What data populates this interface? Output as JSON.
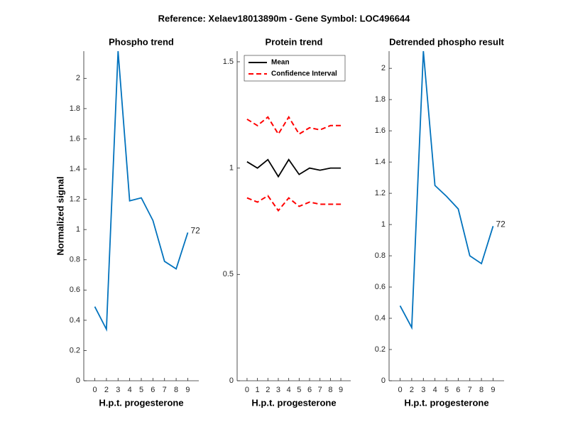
{
  "title": "Reference:  Xelaev18013890m - Gene Symbol:  LOC496644",
  "chart_data": [
    {
      "type": "line",
      "title": "Phospho trend",
      "xlabel": "H.p.t. progesterone",
      "ylabel": "Normalized signal",
      "categories": [
        "0",
        "2",
        "3",
        "4",
        "5",
        "6",
        "7",
        "8",
        "9"
      ],
      "series": [
        {
          "name": "Phospho",
          "color": "#0072bd",
          "values": [
            0.49,
            0.34,
            2.18,
            1.19,
            1.21,
            1.06,
            0.79,
            0.74,
            0.98
          ]
        }
      ],
      "annotation": "72",
      "ylim": [
        0,
        2.18
      ],
      "yticks": [
        0,
        0.2,
        0.4,
        0.6,
        0.8,
        1,
        1.2,
        1.4,
        1.6,
        1.8,
        2
      ]
    },
    {
      "type": "line",
      "title": "Protein trend",
      "xlabel": "H.p.t. progesterone",
      "categories": [
        "0",
        "1",
        "2",
        "3",
        "4",
        "5",
        "6",
        "7",
        "8",
        "9"
      ],
      "series": [
        {
          "name": "Mean",
          "color": "#000000",
          "values": [
            1.03,
            1.0,
            1.04,
            0.96,
            1.04,
            0.97,
            1.0,
            0.99,
            1.0,
            1.0
          ]
        },
        {
          "name": "Confidence Interval",
          "color": "#ff0000",
          "dashed": true,
          "values": [
            1.23,
            1.2,
            1.24,
            1.16,
            1.24,
            1.16,
            1.19,
            1.18,
            1.2,
            1.2
          ],
          "lower_values": [
            0.86,
            0.84,
            0.87,
            0.8,
            0.86,
            0.82,
            0.84,
            0.83,
            0.83,
            0.83
          ]
        }
      ],
      "legend": "northwest",
      "ylim": [
        0,
        1.55
      ],
      "yticks": [
        0,
        0.5,
        1,
        1.5
      ]
    },
    {
      "type": "line",
      "title": "Detrended phospho result",
      "xlabel": "H.p.t. progesterone",
      "categories": [
        "0",
        "2",
        "3",
        "4",
        "5",
        "6",
        "7",
        "8",
        "9"
      ],
      "series": [
        {
          "name": "Detrended",
          "color": "#0072bd",
          "values": [
            0.48,
            0.34,
            2.11,
            1.25,
            1.18,
            1.1,
            0.8,
            0.75,
            0.99
          ]
        }
      ],
      "annotation": "72",
      "ylim": [
        0,
        2.11
      ],
      "yticks": [
        0,
        0.2,
        0.4,
        0.6,
        0.8,
        1,
        1.2,
        1.4,
        1.6,
        1.8,
        2
      ]
    }
  ]
}
